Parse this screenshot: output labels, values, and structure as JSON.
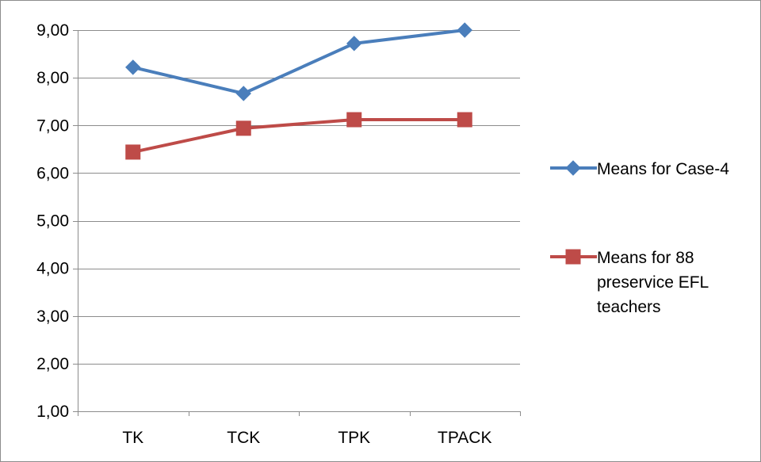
{
  "chart_data": {
    "type": "line",
    "title": "",
    "xlabel": "",
    "ylabel": "",
    "categories": [
      "TK",
      "TCK",
      "TPK",
      "TPACK"
    ],
    "ylim": [
      1,
      9
    ],
    "yticks": [
      "1,00",
      "2,00",
      "3,00",
      "4,00",
      "5,00",
      "6,00",
      "7,00",
      "8,00",
      "9,00"
    ],
    "grid": true,
    "legend_position": "right",
    "series": [
      {
        "name": "Means for Case-4",
        "legend_lines": [
          "Means for Case-4"
        ],
        "values": [
          8.22,
          7.67,
          8.72,
          9.0
        ],
        "color": "#4a7ebb",
        "marker": "diamond"
      },
      {
        "name": "Means for 88 preservice EFL teachers",
        "legend_lines": [
          "Means for 88",
          "preservice EFL",
          "teachers"
        ],
        "values": [
          6.44,
          6.94,
          7.12,
          7.12
        ],
        "color": "#be4b48",
        "marker": "square"
      }
    ]
  }
}
